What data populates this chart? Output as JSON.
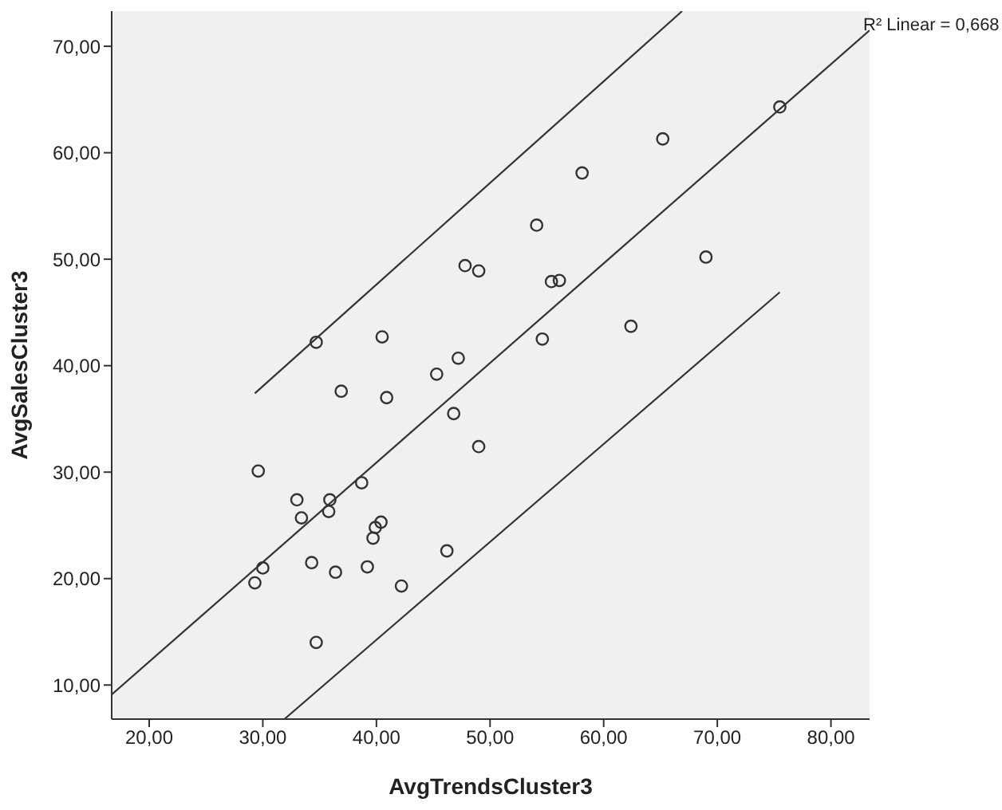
{
  "chart_data": {
    "type": "scatter",
    "xlabel": "AvgTrendsCluster3",
    "ylabel": "AvgSalesCluster3",
    "annotations": [
      "R² Linear = 0,668"
    ],
    "xlim": [
      16.7,
      83.4
    ],
    "ylim": [
      6.8,
      73.3
    ],
    "xticks": [
      {
        "value": 20,
        "label": "20,00"
      },
      {
        "value": 30,
        "label": "30,00"
      },
      {
        "value": 40,
        "label": "40,00"
      },
      {
        "value": 50,
        "label": "50,00"
      },
      {
        "value": 60,
        "label": "60,00"
      },
      {
        "value": 70,
        "label": "70,00"
      },
      {
        "value": 80,
        "label": "80,00"
      }
    ],
    "yticks": [
      {
        "value": 10,
        "label": "10,00"
      },
      {
        "value": 20,
        "label": "20,00"
      },
      {
        "value": 30,
        "label": "30,00"
      },
      {
        "value": 40,
        "label": "40,00"
      },
      {
        "value": 50,
        "label": "50,00"
      },
      {
        "value": 60,
        "label": "60,00"
      },
      {
        "value": 70,
        "label": "70,00"
      }
    ],
    "grid": false,
    "marker": "circle",
    "series": [
      {
        "color": "#333333",
        "x": [
          75.5,
          65.2,
          58.1,
          54.1,
          55.4,
          56.1,
          69.0,
          54.6,
          62.4,
          47.8,
          49.0,
          34.7,
          40.5,
          47.2,
          45.3,
          36.9,
          40.9,
          46.8,
          49.0,
          29.6,
          33.0,
          35.9,
          38.7,
          33.4,
          35.8,
          39.9,
          40.4,
          39.7,
          46.2,
          30.0,
          29.3,
          34.3,
          36.4,
          39.2,
          42.2,
          34.7
        ],
        "values": [
          64.3,
          61.3,
          58.1,
          53.2,
          47.9,
          48.0,
          50.2,
          42.5,
          43.7,
          49.4,
          48.9,
          42.2,
          42.7,
          40.7,
          39.2,
          37.6,
          37.0,
          35.5,
          32.4,
          30.1,
          27.4,
          27.4,
          29.0,
          25.7,
          26.3,
          24.8,
          25.3,
          23.8,
          22.6,
          21.0,
          19.6,
          21.5,
          20.6,
          21.1,
          19.3,
          14.0
        ]
      },
      {
        "type": "line",
        "color": "#333333",
        "marker": "none",
        "x": [
          16.7,
          83.4
        ],
        "values": [
          9.1,
          71.5
        ]
      },
      {
        "type": "line",
        "color": "#333333",
        "marker": "none",
        "x": [
          29.3,
          66.9
        ],
        "values": [
          37.4,
          73.3
        ]
      },
      {
        "type": "line",
        "color": "#333333",
        "marker": "none",
        "x": [
          31.9,
          75.5
        ],
        "values": [
          6.8,
          46.9
        ]
      }
    ]
  }
}
